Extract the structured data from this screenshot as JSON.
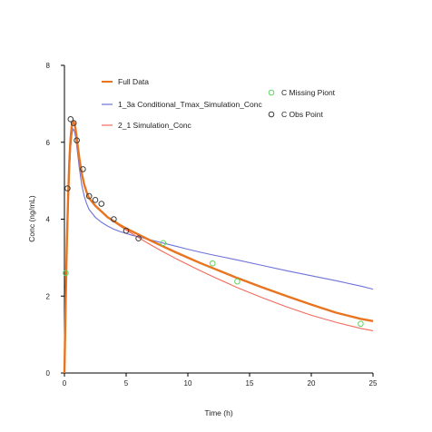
{
  "chart_data": {
    "type": "line",
    "xlabel": "Time (h)",
    "ylabel": "Conc (ng/mL)",
    "xlim": [
      0,
      25
    ],
    "ylim": [
      0,
      8
    ],
    "xticks": [
      "0",
      "5",
      "10",
      "15",
      "20",
      "25"
    ],
    "yticks": [
      "0",
      "2",
      "4",
      "6",
      "8"
    ],
    "grid": false,
    "legend": "top",
    "colors": {
      "full_data": "#e8741f",
      "conditional": "#6f73d8",
      "simulation": "#ef6a5a",
      "missing": "#5fd65f",
      "obs": "#3a3a3a"
    },
    "series": [
      {
        "name": "Full Data",
        "kind": "line",
        "x": [
          0,
          0.1,
          0.2,
          0.3,
          0.4,
          0.5,
          0.6,
          0.7,
          0.8,
          0.9,
          1,
          1.2,
          1.4,
          1.6,
          1.8,
          2,
          2.5,
          3,
          3.5,
          4,
          4.5,
          5,
          5.5,
          6,
          7,
          8,
          9,
          10,
          11,
          12,
          14,
          16,
          18,
          20,
          22,
          24,
          25
        ],
        "y": [
          0,
          1.9,
          3.4,
          4.6,
          5.5,
          6.1,
          6.45,
          6.55,
          6.5,
          6.35,
          6.1,
          5.6,
          5.2,
          4.9,
          4.7,
          4.55,
          4.35,
          4.2,
          4.05,
          3.95,
          3.85,
          3.76,
          3.68,
          3.6,
          3.44,
          3.29,
          3.14,
          3.0,
          2.86,
          2.73,
          2.47,
          2.23,
          2.0,
          1.78,
          1.57,
          1.41,
          1.35
        ]
      },
      {
        "name": "1_3a Conditional_Tmax_Simulation_Conc",
        "kind": "line",
        "x": [
          0,
          0.1,
          0.2,
          0.3,
          0.4,
          0.5,
          0.6,
          0.7,
          0.8,
          0.9,
          1,
          1.2,
          1.4,
          1.6,
          1.8,
          2,
          2.5,
          3,
          3.5,
          4,
          4.5,
          5,
          5.5,
          6,
          7,
          8,
          9,
          10,
          11,
          12,
          14,
          16,
          18,
          20,
          22,
          24,
          25
        ],
        "y": [
          0,
          1.7,
          3.1,
          4.3,
          5.2,
          5.85,
          6.2,
          6.35,
          6.3,
          6.15,
          5.9,
          5.35,
          4.9,
          4.6,
          4.4,
          4.25,
          4.05,
          3.92,
          3.82,
          3.74,
          3.68,
          3.63,
          3.58,
          3.54,
          3.46,
          3.38,
          3.3,
          3.22,
          3.14,
          3.07,
          2.94,
          2.8,
          2.66,
          2.53,
          2.4,
          2.26,
          2.18
        ]
      },
      {
        "name": "2_1 Simulation_Conc",
        "kind": "line",
        "x": [
          0,
          0.1,
          0.2,
          0.3,
          0.4,
          0.5,
          0.6,
          0.7,
          0.8,
          0.9,
          1,
          1.2,
          1.4,
          1.6,
          1.8,
          2,
          2.5,
          3,
          3.5,
          4,
          4.5,
          5,
          5.5,
          6,
          7,
          8,
          9,
          10,
          11,
          12,
          14,
          16,
          18,
          20,
          22,
          24,
          25
        ],
        "y": [
          0,
          2.0,
          3.6,
          4.8,
          5.7,
          6.25,
          6.5,
          6.55,
          6.5,
          6.35,
          6.1,
          5.6,
          5.2,
          4.9,
          4.7,
          4.55,
          4.35,
          4.2,
          4.05,
          3.93,
          3.82,
          3.72,
          3.62,
          3.52,
          3.33,
          3.15,
          2.98,
          2.82,
          2.66,
          2.51,
          2.22,
          1.96,
          1.72,
          1.5,
          1.32,
          1.16,
          1.1
        ]
      },
      {
        "name": "C Missing Piont",
        "kind": "scatter",
        "x": [
          0.1,
          8,
          12,
          14,
          24
        ],
        "y": [
          2.6,
          3.38,
          2.85,
          2.38,
          1.28
        ]
      },
      {
        "name": "C Obs Point",
        "kind": "scatter",
        "x": [
          0.25,
          0.5,
          0.75,
          1,
          1.5,
          2,
          2.5,
          3,
          4,
          5,
          6
        ],
        "y": [
          4.8,
          6.6,
          6.5,
          6.05,
          5.3,
          4.6,
          4.5,
          4.4,
          4.0,
          3.7,
          3.5
        ]
      }
    ]
  }
}
